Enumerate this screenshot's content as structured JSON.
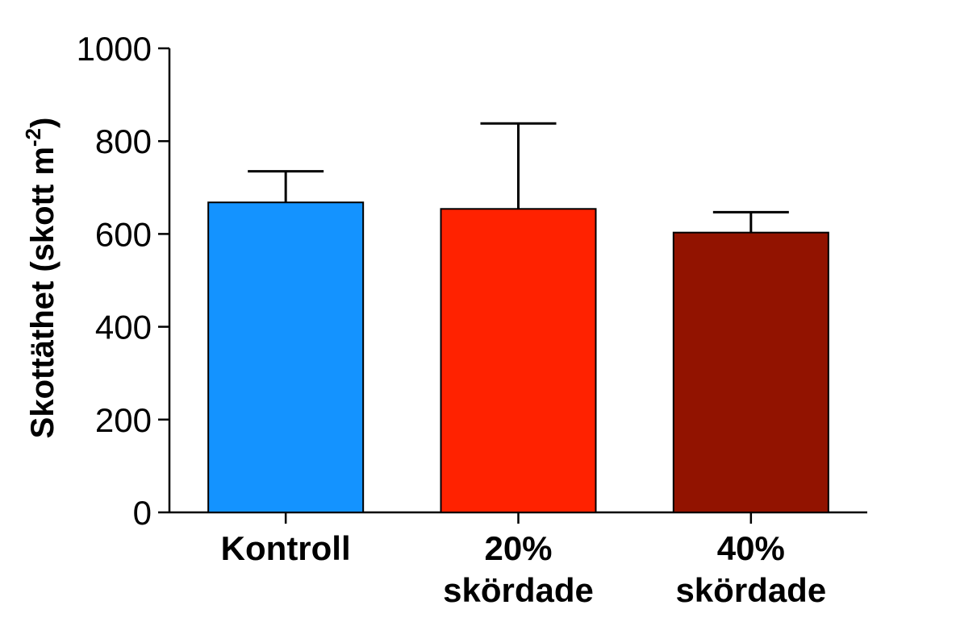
{
  "chart_data": {
    "type": "bar",
    "categories": [
      [
        "Kontroll"
      ],
      [
        "20%",
        "skördade"
      ],
      [
        "40%",
        "skördade"
      ]
    ],
    "values": [
      668,
      654,
      603
    ],
    "error_upper": [
      735,
      838,
      647
    ],
    "colors": [
      "#1493ff",
      "#ff2200",
      "#921300"
    ],
    "ylabel": {
      "main": "Skottäthet (skott m",
      "sup": "-2",
      "close": ")"
    },
    "ylim": [
      0,
      1000
    ],
    "yticks": [
      "0",
      "200",
      "400",
      "600",
      "800",
      "1000"
    ],
    "grid": false,
    "legend": "none"
  }
}
